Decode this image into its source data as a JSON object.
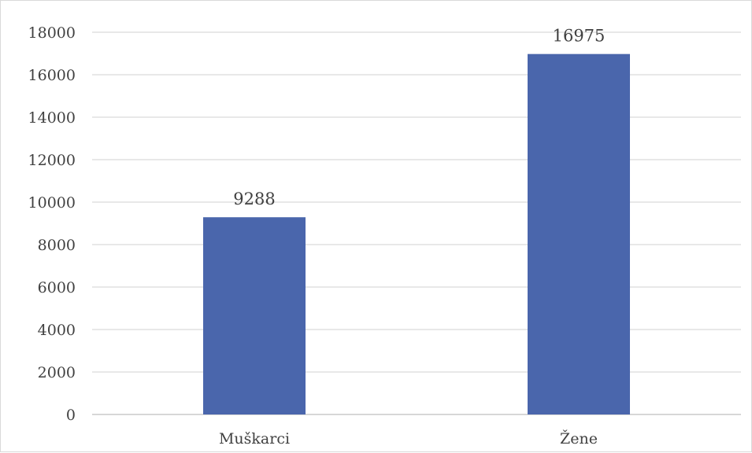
{
  "chart_data": {
    "type": "bar",
    "categories": [
      "Muškarci",
      "Žene"
    ],
    "values": [
      9288,
      16975
    ],
    "data_labels": [
      "9288",
      "16975"
    ],
    "title": "",
    "xlabel": "",
    "ylabel": "",
    "ylim": [
      0,
      18000
    ],
    "y_ticks": [
      0,
      2000,
      4000,
      6000,
      8000,
      10000,
      12000,
      14000,
      16000,
      18000
    ],
    "grid": true,
    "legend": "none",
    "bar_color": "#4a66ac",
    "grid_color": "#d9d9d9",
    "axis_color": "#bfbfbf"
  }
}
